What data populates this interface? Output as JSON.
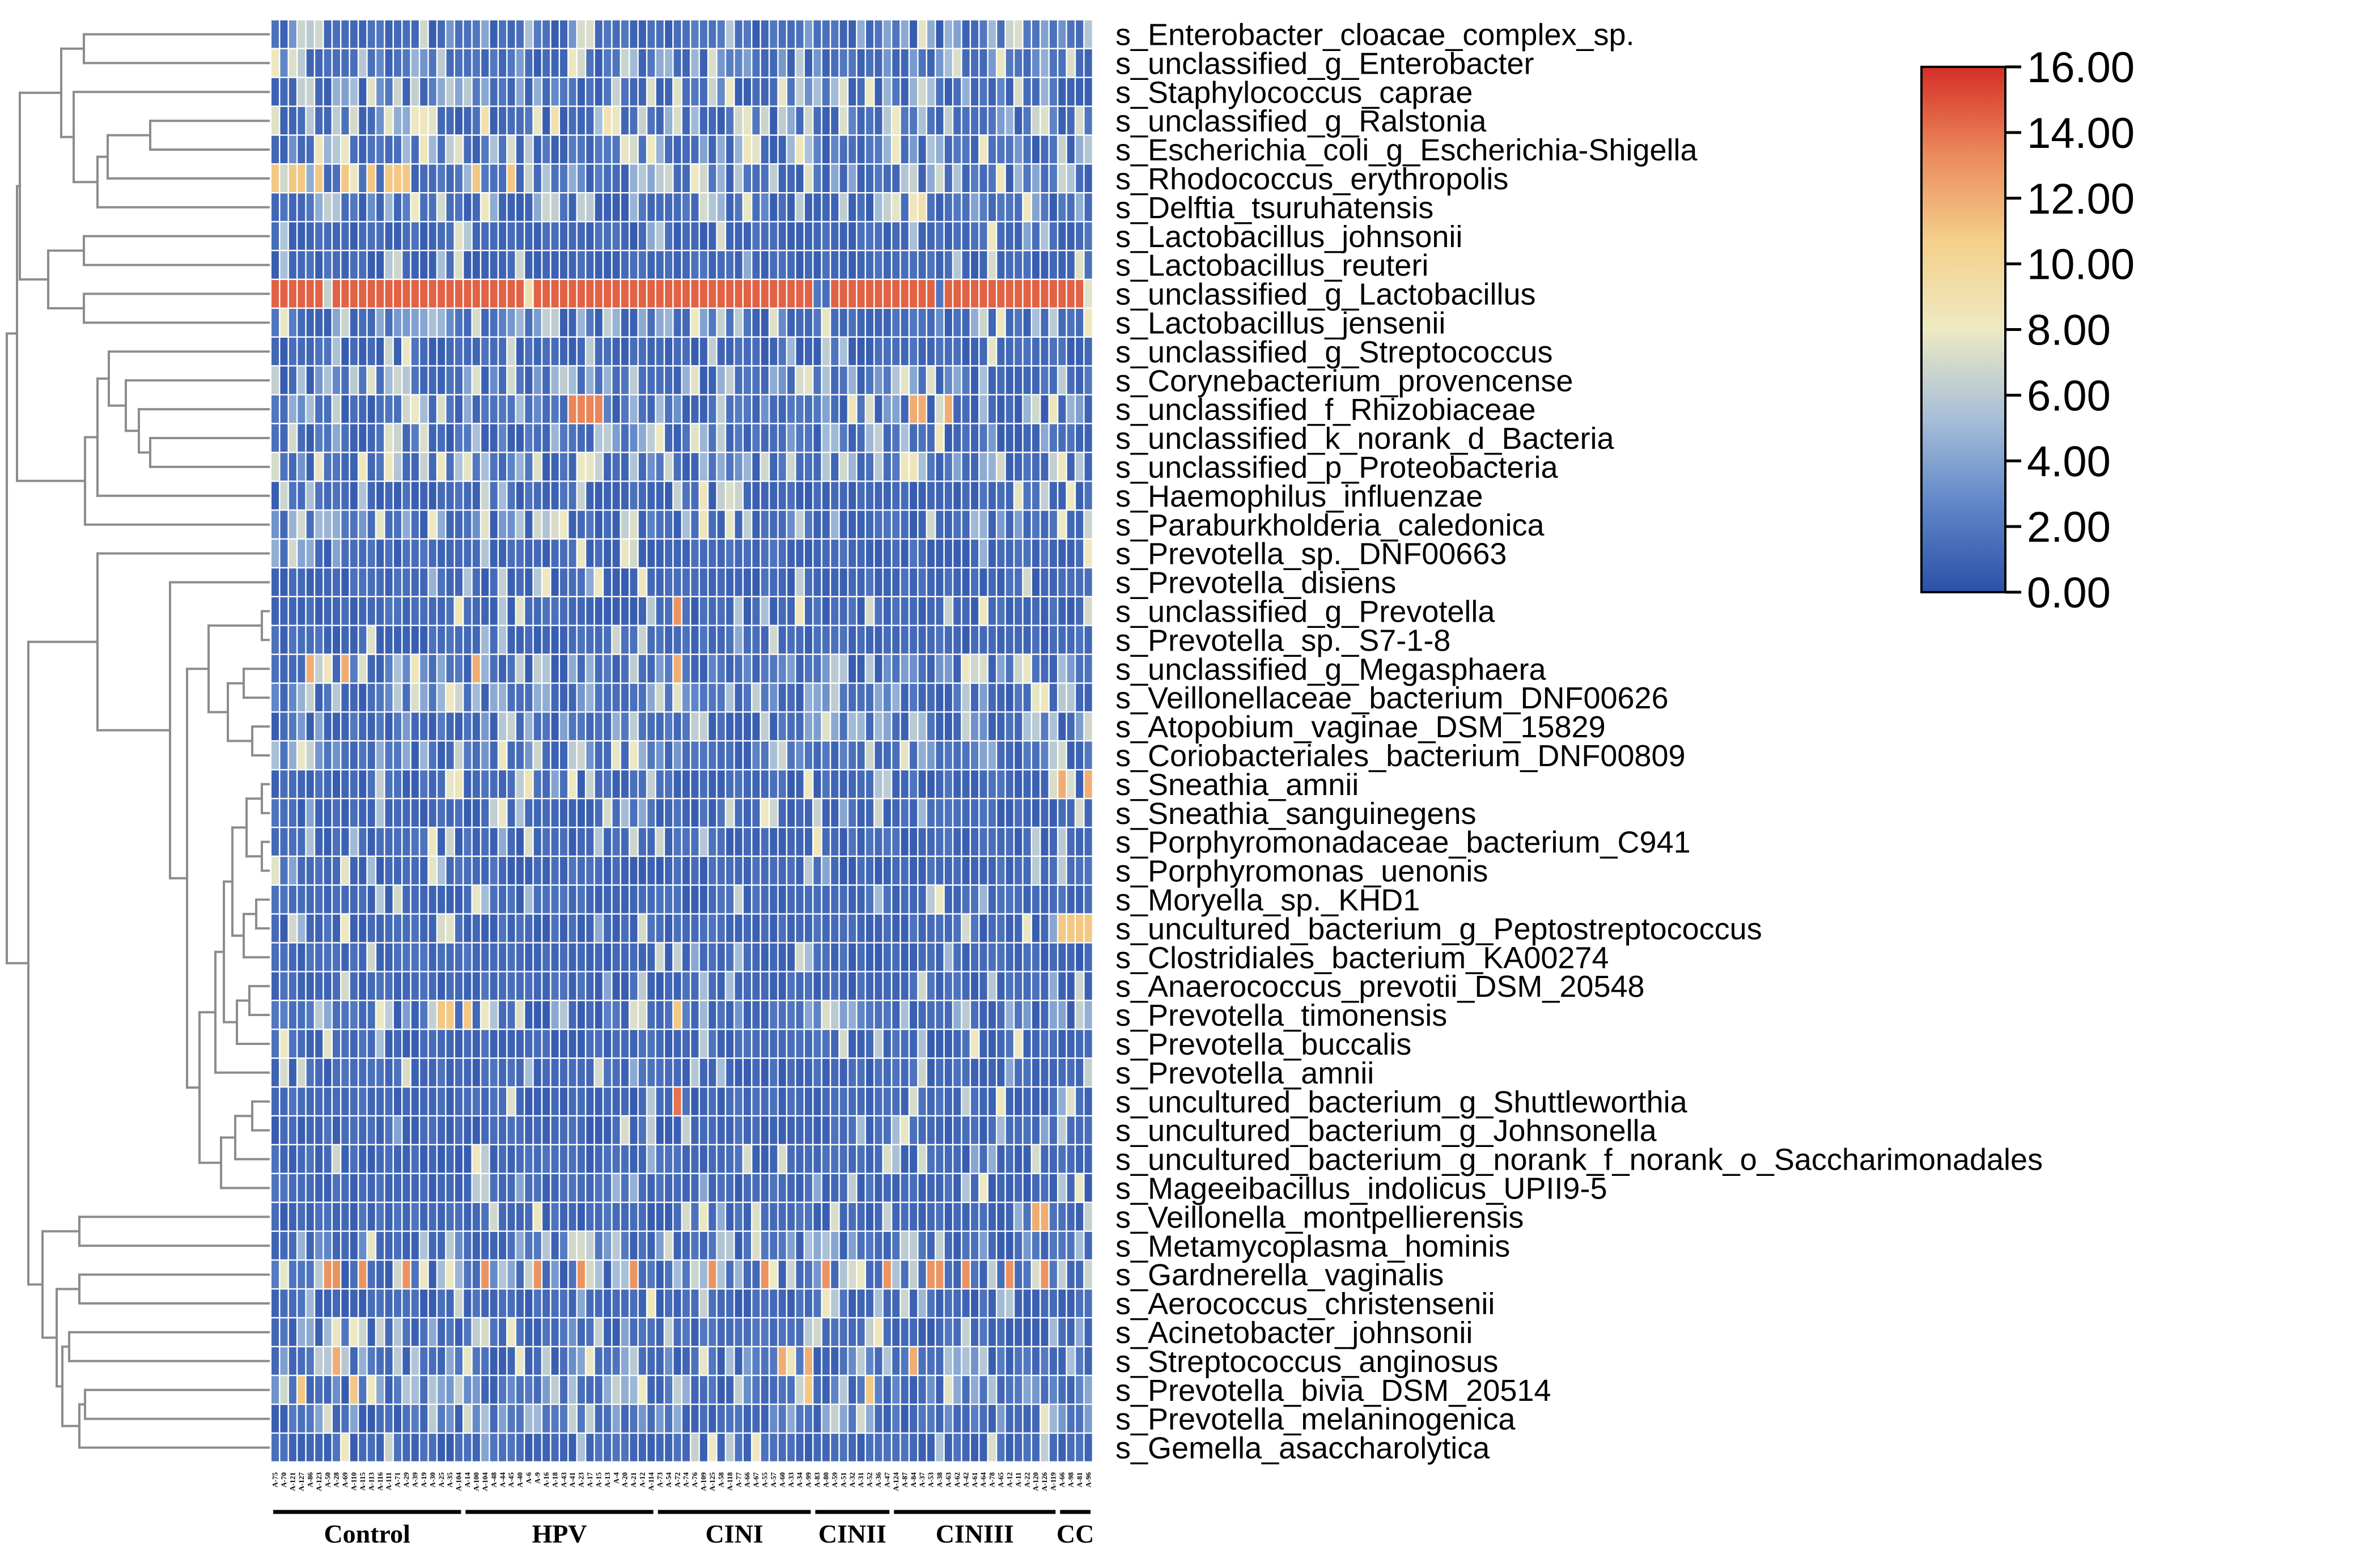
{
  "chart_data": {
    "type": "heatmap",
    "title": "",
    "xlabel": "",
    "ylabel": "",
    "colorbar": {
      "min": 0,
      "max": 16,
      "ticks": [
        "0.00",
        "2.00",
        "4.00",
        "6.00",
        "8.00",
        "10.00",
        "12.00",
        "14.00",
        "16.00"
      ],
      "colormap": [
        "#2b50a8",
        "#5f86c8",
        "#a7bfd8",
        "#ede9c3",
        "#f4d08a",
        "#eb8a5c",
        "#d42e26"
      ]
    },
    "rows": [
      "s_Enterobacter_cloacae_complex_sp.",
      "s_unclassified_g_Enterobacter",
      "s_Staphylococcus_caprae",
      "s_unclassified_g_Ralstonia",
      "s_Escherichia_coli_g_Escherichia-Shigella",
      "s_Rhodococcus_erythropolis",
      "s_Delftia_tsuruhatensis",
      "s_Lactobacillus_johnsonii",
      "s_Lactobacillus_reuteri",
      "s_unclassified_g_Lactobacillus",
      "s_Lactobacillus_jensenii",
      "s_unclassified_g_Streptococcus",
      "s_Corynebacterium_provencense",
      "s_unclassified_f_Rhizobiaceae",
      "s_unclassified_k_norank_d_Bacteria",
      "s_unclassified_p_Proteobacteria",
      "s_Haemophilus_influenzae",
      "s_Paraburkholderia_caledonica",
      "s_Prevotella_sp._DNF00663",
      "s_Prevotella_disiens",
      "s_unclassified_g_Prevotella",
      "s_Prevotella_sp._S7-1-8",
      "s_unclassified_g_Megasphaera",
      "s_Veillonellaceae_bacterium_DNF00626",
      "s_Atopobium_vaginae_DSM_15829",
      "s_Coriobacteriales_bacterium_DNF00809",
      "s_Sneathia_amnii",
      "s_Sneathia_sanguinegens",
      "s_Porphyromonadaceae_bacterium_C941",
      "s_Porphyromonas_uenonis",
      "s_Moryella_sp._KHD1",
      "s_uncultured_bacterium_g_Peptostreptococcus",
      "s_Clostridiales_bacterium_KA00274",
      "s_Anaerococcus_prevotii_DSM_20548",
      "s_Prevotella_timonensis",
      "s_Prevotella_buccalis",
      "s_Prevotella_amnii",
      "s_uncultured_bacterium_g_Shuttleworthia",
      "s_uncultured_bacterium_g_Johnsonella",
      "s_uncultured_bacterium_g_norank_f_norank_o_Saccharimonadales",
      "s_Mageeibacillus_indolicus_UPII9-5",
      "s_Veillonella_montpellierensis",
      "s_Metamycoplasma_hominis",
      "s_Gardnerella_vaginalis",
      "s_Aerococcus_christensenii",
      "s_Acinetobacter_johnsonii",
      "s_Streptococcus_anginosus",
      "s_Prevotella_bivia_DSM_20514",
      "s_Prevotella_melaninogenica",
      "s_Gemella_asaccharolytica"
    ],
    "groups": [
      {
        "name": "Control",
        "count": 22
      },
      {
        "name": "HPV",
        "count": 22
      },
      {
        "name": "CINI",
        "count": 18
      },
      {
        "name": "CINII",
        "count": 9
      },
      {
        "name": "CINIII",
        "count": 19
      },
      {
        "name": "CC",
        "count": 4
      }
    ],
    "columns": [
      "A-75",
      "A-70",
      "A-121",
      "A-127",
      "A-86",
      "A-123",
      "A-50",
      "A-28",
      "A-69",
      "A-110",
      "A-115",
      "A-113",
      "A-116",
      "A-111",
      "A-71",
      "A-29",
      "A-39",
      "A-19",
      "A-30",
      "A-25",
      "A-35",
      "A-104",
      "A-14",
      "A-100",
      "A-104",
      "A-48",
      "A-44",
      "A-45",
      "A-40",
      "A-6",
      "A-9",
      "A-16",
      "A-18",
      "A-43",
      "A-41",
      "A-23",
      "A-17",
      "A-15",
      "A-13",
      "A-4",
      "A-20",
      "A-21",
      "A-12",
      "A-114",
      "A-73",
      "A-54",
      "A-72",
      "A-74",
      "A-76",
      "A-109",
      "A-125",
      "A-58",
      "A-118",
      "A-77",
      "A-66",
      "A-67",
      "A-55",
      "A-57",
      "A-60",
      "A-33",
      "A-34",
      "A-99",
      "A-83",
      "A-80",
      "A-59",
      "A-51",
      "A-32",
      "A-31",
      "A-52",
      "A-36",
      "A-47",
      "A-124",
      "A-87",
      "A-84",
      "A-37",
      "A-53",
      "A-38",
      "A-63",
      "A-62",
      "A-42",
      "A-61",
      "A-64",
      "A-78",
      "A-65",
      "A-12",
      "A-11",
      "A-22",
      "A-120",
      "A-126",
      "A-119",
      "A-66",
      "A-98",
      "A-81",
      "A-96"
    ],
    "hot_cells": [
      {
        "row": 9,
        "cols": [
          0,
          1,
          2,
          3,
          4,
          5,
          7,
          8,
          9,
          10,
          11,
          12,
          13,
          14,
          15,
          16,
          17,
          18,
          19,
          20,
          21,
          22,
          23,
          24,
          25,
          26,
          27,
          28,
          30,
          31,
          32,
          33,
          34,
          35,
          36,
          37,
          38,
          39,
          40,
          41,
          42,
          43,
          44,
          45,
          46,
          47,
          48,
          49,
          50,
          51,
          52,
          53,
          54,
          55,
          56,
          57,
          58,
          59,
          60,
          61,
          64,
          65,
          66,
          67,
          68,
          69,
          70,
          71,
          72,
          73,
          74,
          75,
          77,
          78,
          79,
          80,
          81,
          82,
          83,
          84,
          85,
          86,
          87,
          88,
          89,
          90,
          91,
          92
        ],
        "value": 14.5
      },
      {
        "row": 13,
        "cols": [
          34,
          35,
          36,
          37
        ],
        "value": 13.5
      },
      {
        "row": 43,
        "cols": [
          6,
          7,
          10,
          15,
          24,
          30,
          35,
          41,
          50,
          56,
          63,
          70,
          75,
          76,
          79,
          84,
          88
        ],
        "value": 13
      },
      {
        "row": 5,
        "cols": [
          0,
          2,
          3,
          5,
          8,
          11,
          13,
          14,
          15,
          23,
          27
        ],
        "value": 11
      },
      {
        "row": 20,
        "cols": [
          46
        ],
        "value": 13
      },
      {
        "row": 37,
        "cols": [
          46
        ],
        "value": 14
      },
      {
        "row": 31,
        "cols": [
          90,
          91,
          92,
          93
        ],
        "value": 11
      },
      {
        "row": 26,
        "cols": [
          90,
          93
        ],
        "value": 12
      },
      {
        "row": 22,
        "cols": [
          4,
          8,
          23,
          46
        ],
        "value": 12
      },
      {
        "row": 46,
        "cols": [
          7,
          58,
          61,
          73
        ],
        "value": 12
      },
      {
        "row": 47,
        "cols": [
          3,
          9,
          61,
          68
        ],
        "value": 11
      },
      {
        "row": 34,
        "cols": [
          19,
          20,
          22,
          46
        ],
        "value": 11
      },
      {
        "row": 13,
        "cols": [
          73,
          74,
          77
        ],
        "value": 12
      },
      {
        "row": 41,
        "cols": [
          87,
          88
        ],
        "value": 12
      }
    ]
  }
}
